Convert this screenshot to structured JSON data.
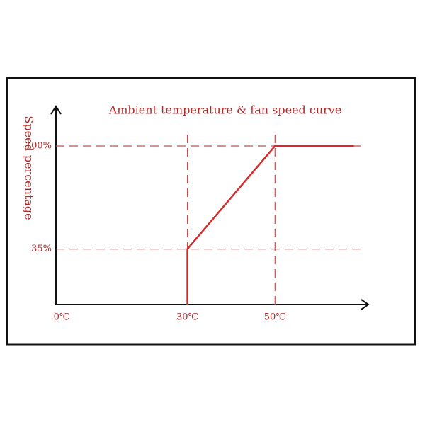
{
  "chart_data": {
    "type": "line",
    "title": "Ambient temperature & fan speed curve",
    "y_label": "Speed percentage",
    "x": [
      30,
      30,
      50,
      68
    ],
    "series": [
      {
        "color": "#d42a2a",
        "values": [
          0,
          35,
          100,
          100
        ]
      }
    ],
    "xlim": [
      0,
      70
    ],
    "xticks": [
      {
        "value": 0,
        "label": "0℃"
      },
      {
        "value": 30,
        "label": "30℃"
      },
      {
        "value": 50,
        "label": "50℃"
      }
    ],
    "ylim": [
      0,
      125
    ],
    "yticks": [
      {
        "value": 35,
        "label": "35%"
      },
      {
        "value": 100,
        "label": "100%"
      }
    ],
    "grid": true
  }
}
